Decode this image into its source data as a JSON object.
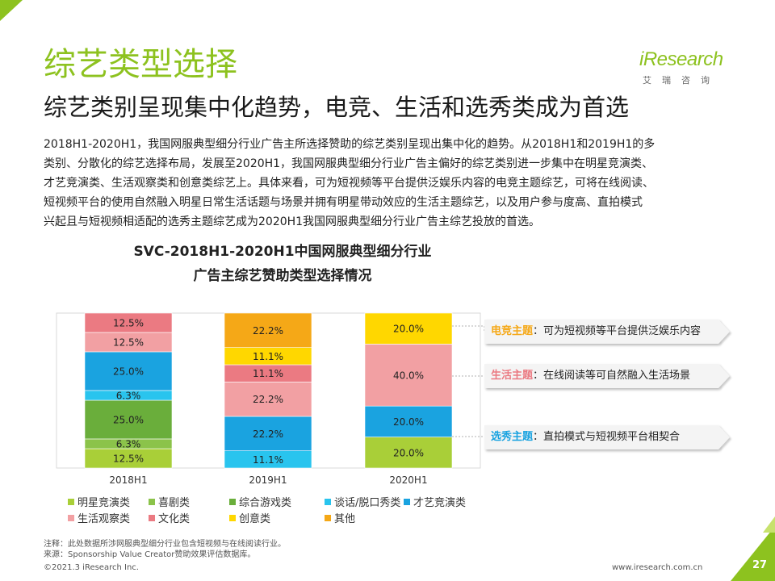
{
  "header": {
    "title": "综艺类型选择",
    "subtitle": "综艺类别呈现集中化趋势，电竞、生活和选秀类成为首选"
  },
  "logo": {
    "brand": "iResearch",
    "cn": "艾瑞咨询"
  },
  "body_text": [
    "2018H1-2020H1，我国网服典型细分行业广告主所选择赞助的综艺类别呈现出集中化的趋势。从2018H1和2019H1的多",
    "类别、分散化的综艺选择布局，发展至2020H1，我国网服典型细分行业广告主偏好的综艺类别进一步集中在明星竞演类、",
    "才艺竞演类、生活观察类和创意类综艺上。具体来看，可为短视频等平台提供泛娱乐内容的电竞主题综艺，可将在线阅读、",
    "短视频平台的使用自然融入明星日常生活话题与场景并拥有明星带动效应的生活主题综艺，以及用户参与度高、直拍模式",
    "兴起且与短视频相适配的选秀主题综艺成为2020H1我国网服典型细分行业广告主综艺投放的首选。"
  ],
  "chart_data": {
    "type": "bar",
    "stacked": true,
    "title_lines": [
      "SVC-2018H1-2020H1中国网服典型细分行业",
      "广告主综艺赞助类型选择情况"
    ],
    "categories": [
      "2018H1",
      "2019H1",
      "2020H1"
    ],
    "ylim": [
      0,
      100
    ],
    "unit": "%",
    "series": [
      {
        "name": "明星竞演类",
        "color": "#a9cf38",
        "values": [
          12.5,
          0,
          20.0
        ],
        "labels": [
          "12.5%",
          "",
          "20.0%"
        ]
      },
      {
        "name": "喜剧类",
        "color": "#8bc34a",
        "values": [
          6.3,
          0,
          0
        ],
        "labels": [
          "6.3%",
          "",
          ""
        ]
      },
      {
        "name": "综合游戏类",
        "color": "#6aae3b",
        "values": [
          25.0,
          0,
          0
        ],
        "labels": [
          "25.0%",
          "",
          ""
        ]
      },
      {
        "name": "谈话/脱口秀类",
        "color": "#29c4ee",
        "values": [
          6.3,
          11.1,
          0
        ],
        "labels": [
          "6.3%",
          "11.1%",
          ""
        ]
      },
      {
        "name": "才艺竞演类",
        "color": "#1aa3e0",
        "values": [
          25.0,
          22.2,
          20.0
        ],
        "labels": [
          "25.0%",
          "22.2%",
          "20.0%"
        ]
      },
      {
        "name": "生活观察类",
        "color": "#f2a0a3",
        "values": [
          12.5,
          22.2,
          40.0
        ],
        "labels": [
          "12.5%",
          "22.2%",
          "40.0%"
        ]
      },
      {
        "name": "文化类",
        "color": "#eb7a82",
        "values": [
          12.5,
          11.1,
          0
        ],
        "labels": [
          "12.5%",
          "11.1%",
          ""
        ]
      },
      {
        "name": "创意类",
        "color": "#ffd700",
        "values": [
          0,
          11.1,
          20.0
        ],
        "labels": [
          "",
          "11.1%",
          "20.0%"
        ]
      },
      {
        "name": "其他",
        "color": "#f5a817",
        "values": [
          0,
          22.2,
          0
        ],
        "labels": [
          "",
          "22.2%",
          ""
        ]
      }
    ]
  },
  "legend": [
    {
      "label": "明星竞演类",
      "color": "#a9cf38"
    },
    {
      "label": "喜剧类",
      "color": "#8bc34a"
    },
    {
      "label": "综合游戏类",
      "color": "#6aae3b"
    },
    {
      "label": "谈话/脱口秀类",
      "color": "#29c4ee"
    },
    {
      "label": "才艺竞演类",
      "color": "#1aa3e0"
    },
    {
      "label": "生活观察类",
      "color": "#f2a0a3"
    },
    {
      "label": "文化类",
      "color": "#eb7a82"
    },
    {
      "label": "创意类",
      "color": "#ffd700"
    },
    {
      "label": "其他",
      "color": "#f5a817"
    }
  ],
  "callouts": [
    {
      "highlight": "电竞主题",
      "text": "：可为短视频等平台提供泛娱乐内容",
      "color": "#f5a817"
    },
    {
      "highlight": "生活主题",
      "text": "：在线阅读等可自然融入生活场景",
      "color": "#eb7a82"
    },
    {
      "highlight": "选秀主题",
      "text": "：直拍模式与短视频平台相契合",
      "color": "#1aa3e0"
    }
  ],
  "notes": {
    "note": "注释：此处数据所涉网服典型细分行业包含短视频与在线阅读行业。",
    "source": "来源：Sponsorship Value Creator赞助效果评估数据库。"
  },
  "footer": {
    "copyright": "©2021.3 iResearch Inc.",
    "website": "www.iresearch.com.cn",
    "page": "27"
  },
  "colors": {
    "accent": "#8dc21f",
    "chart_frame": "#d9d9d9"
  }
}
